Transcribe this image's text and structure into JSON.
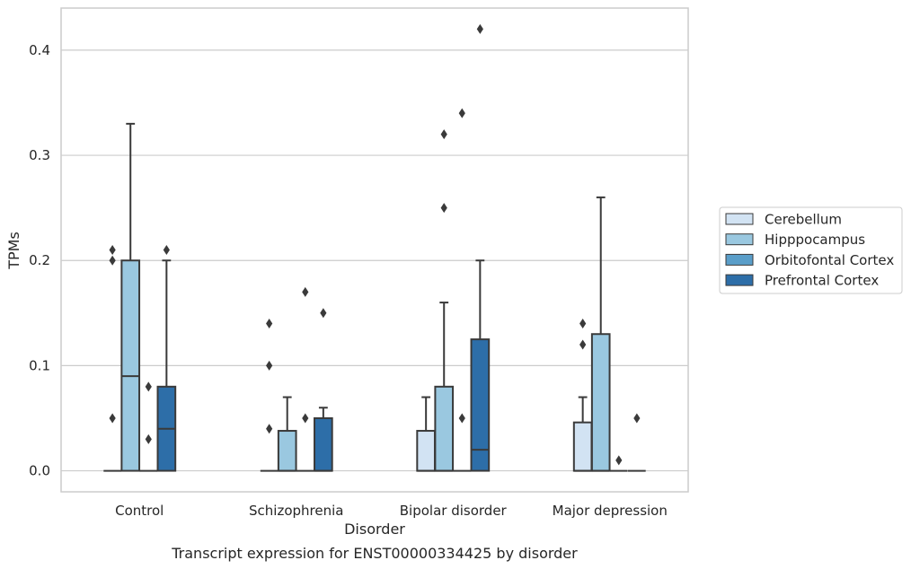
{
  "caption": "Transcript expression for ENST00000334425 by disorder",
  "chart_data": {
    "type": "box",
    "xlabel": "Disorder",
    "ylabel": "TPMs",
    "ylim": [
      -0.02,
      0.44
    ],
    "yticks": [
      "0.0",
      "0.1",
      "0.2",
      "0.3",
      "0.4"
    ],
    "grid": true,
    "legend_position": "right",
    "categories": [
      "Control",
      "Schizophrenia",
      "Bipolar disorder",
      "Major depression"
    ],
    "series": [
      {
        "name": "Cerebellum",
        "color": "#d2e3f3",
        "boxes": [
          {
            "q1": 0,
            "median": 0,
            "q3": 0,
            "whislo": 0,
            "whishi": 0,
            "fliers": [
              0.05,
              0.2,
              0.21
            ]
          },
          {
            "q1": 0,
            "median": 0,
            "q3": 0,
            "whislo": 0,
            "whishi": 0,
            "fliers": [
              0.04,
              0.1,
              0.14
            ]
          },
          {
            "q1": 0,
            "median": 0,
            "q3": 0.038,
            "whislo": 0,
            "whishi": 0.07,
            "fliers": []
          },
          {
            "q1": 0,
            "median": 0,
            "q3": 0.046,
            "whislo": 0,
            "whishi": 0.07,
            "fliers": [
              0.12,
              0.14
            ]
          }
        ]
      },
      {
        "name": "Hipppocampus",
        "color": "#9ac8e0",
        "boxes": [
          {
            "q1": 0,
            "median": 0.09,
            "q3": 0.2,
            "whislo": 0,
            "whishi": 0.33,
            "fliers": []
          },
          {
            "q1": 0,
            "median": 0,
            "q3": 0.038,
            "whislo": 0,
            "whishi": 0.07,
            "fliers": []
          },
          {
            "q1": 0,
            "median": 0,
            "q3": 0.08,
            "whislo": 0,
            "whishi": 0.16,
            "fliers": [
              0.25,
              0.32
            ]
          },
          {
            "q1": 0,
            "median": 0,
            "q3": 0.13,
            "whislo": 0,
            "whishi": 0.26,
            "fliers": []
          }
        ]
      },
      {
        "name": "Orbitofontal Cortex",
        "color": "#5a9ec9",
        "boxes": [
          {
            "q1": 0,
            "median": 0,
            "q3": 0,
            "whislo": 0,
            "whishi": 0,
            "fliers": [
              0.03,
              0.08
            ]
          },
          {
            "q1": 0,
            "median": 0,
            "q3": 0,
            "whislo": 0,
            "whishi": 0,
            "fliers": [
              0.05,
              0.17
            ]
          },
          {
            "q1": 0,
            "median": 0,
            "q3": 0,
            "whislo": 0,
            "whishi": 0,
            "fliers": [
              0.05,
              0.34
            ]
          },
          {
            "q1": 0,
            "median": 0,
            "q3": 0,
            "whislo": 0,
            "whishi": 0,
            "fliers": [
              0.01
            ]
          }
        ]
      },
      {
        "name": "Prefrontal Cortex",
        "color": "#2d6ea8",
        "boxes": [
          {
            "q1": 0,
            "median": 0.04,
            "q3": 0.08,
            "whislo": 0,
            "whishi": 0.2,
            "fliers": [
              0.21
            ]
          },
          {
            "q1": 0,
            "median": 0,
            "q3": 0.05,
            "whislo": 0,
            "whishi": 0.06,
            "fliers": [
              0.15
            ]
          },
          {
            "q1": 0,
            "median": 0.02,
            "q3": 0.125,
            "whislo": 0,
            "whishi": 0.2,
            "fliers": [
              0.42
            ]
          },
          {
            "q1": 0,
            "median": 0,
            "q3": 0,
            "whislo": 0,
            "whishi": 0,
            "fliers": [
              0.05
            ]
          }
        ]
      }
    ]
  }
}
